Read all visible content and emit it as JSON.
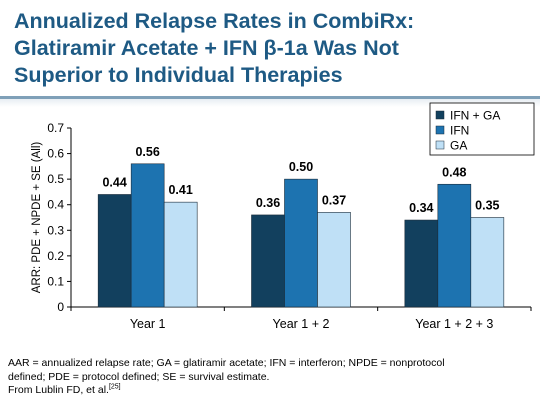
{
  "slide": {
    "title_lines": [
      "Annualized Relapse Rates in CombiRx:",
      "Glatiramir Acetate + IFN β-1a Was Not",
      "Superior to Individual Therapies"
    ],
    "title_color": "#1e5a84",
    "rule_color": "#7fa0b8"
  },
  "chart_data": {
    "type": "bar",
    "title": "",
    "categories": [
      "Year 1",
      "Year 1 + 2",
      "Year 1 + 2 + 3"
    ],
    "series": [
      {
        "name": "IFN + GA",
        "values": [
          0.44,
          0.36,
          0.34
        ],
        "labels": [
          "0.44",
          "0.36",
          "0.34"
        ],
        "color": "#12405e"
      },
      {
        "name": "IFN",
        "values": [
          0.56,
          0.5,
          0.48
        ],
        "labels": [
          "0.56",
          "0.50",
          "0.48"
        ],
        "color": "#1d73b0"
      },
      {
        "name": "GA",
        "values": [
          0.41,
          0.37,
          0.35
        ],
        "labels": [
          "0.41",
          "0.37",
          "0.35"
        ],
        "color": "#bfe0f6"
      }
    ],
    "xlabel": "",
    "ylabel": "ARR: PDE + NPDE + SE (All)",
    "ylim": [
      0,
      0.7
    ],
    "yticks": [
      "0",
      "0.1",
      "0.2",
      "0.3",
      "0.4",
      "0.5",
      "0.6",
      "0.7"
    ],
    "grid": false,
    "legend_position": "top-right"
  },
  "footnote": {
    "line1": "AAR = annualized relapse rate; GA = glatiramir acetate; IFN = interferon; NPDE = nonprotocol",
    "line2": "defined; PDE = protocol defined; SE = survival estimate.",
    "line3": "From Lublin FD, et al.",
    "ref": "[25]"
  }
}
